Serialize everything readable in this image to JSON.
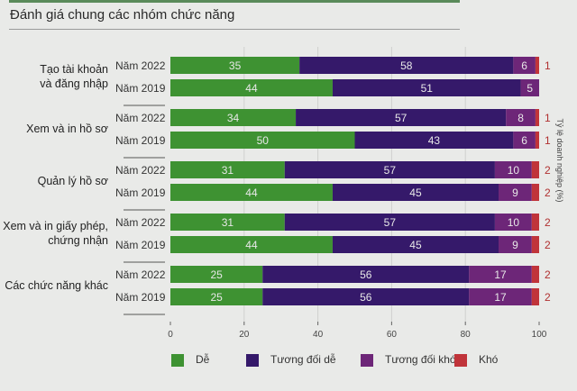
{
  "title": "Đánh giá chung các nhóm chức năng",
  "chart_data": {
    "type": "bar",
    "orientation": "horizontal-stacked",
    "title": "Đánh giá chung các nhóm chức năng",
    "xlabel": "",
    "ylabel": "Tỷ lệ doanh nghiệp (%)",
    "xlim": [
      0,
      100
    ],
    "xticks": [
      "0",
      "20",
      "40",
      "60",
      "80",
      "100"
    ],
    "grid": true,
    "legend_position": "bottom",
    "series_names": [
      "Dễ",
      "Tương đối dễ",
      "Tương đối khó",
      "Khó"
    ],
    "colors": [
      "#3e9232",
      "#35196a",
      "#6d2678",
      "#c0343a"
    ],
    "groups": [
      {
        "label": [
          "Tạo tài khoản",
          "và đăng nhập"
        ],
        "rows": [
          {
            "year": "Năm 2022",
            "values": [
              35,
              58,
              6,
              1
            ]
          },
          {
            "year": "Năm 2019",
            "values": [
              44,
              51,
              5,
              0
            ]
          }
        ]
      },
      {
        "label": [
          "Xem và in hồ sơ"
        ],
        "rows": [
          {
            "year": "Năm 2022",
            "values": [
              34,
              57,
              8,
              1
            ]
          },
          {
            "year": "Năm 2019",
            "values": [
              50,
              43,
              6,
              1
            ]
          }
        ]
      },
      {
        "label": [
          "Quản lý hồ sơ"
        ],
        "rows": [
          {
            "year": "Năm 2022",
            "values": [
              31,
              57,
              10,
              2
            ]
          },
          {
            "year": "Năm 2019",
            "values": [
              44,
              45,
              9,
              2
            ]
          }
        ]
      },
      {
        "label": [
          "Xem và in giấy phép,",
          "chứng nhận"
        ],
        "rows": [
          {
            "year": "Năm 2022",
            "values": [
              31,
              57,
              10,
              2
            ]
          },
          {
            "year": "Năm 2019",
            "values": [
              44,
              45,
              9,
              2
            ]
          }
        ]
      },
      {
        "label": [
          "Các chức năng khác"
        ],
        "rows": [
          {
            "year": "Năm 2022",
            "values": [
              25,
              56,
              17,
              2
            ]
          },
          {
            "year": "Năm 2019",
            "values": [
              25,
              56,
              17,
              2
            ]
          }
        ]
      }
    ]
  }
}
